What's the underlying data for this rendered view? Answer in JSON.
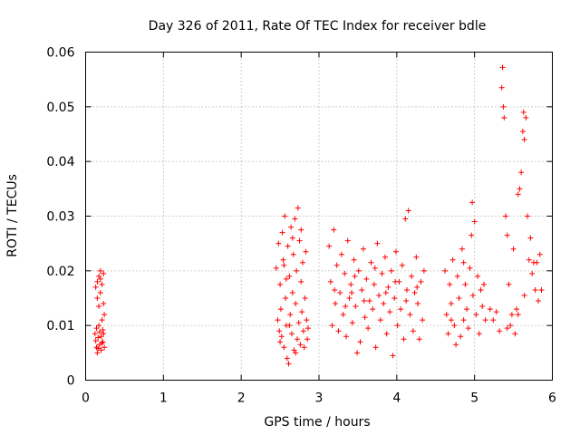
{
  "chart_data": {
    "type": "scatter",
    "title": "Day 326 of 2011, Rate Of TEC Index for receiver bdle",
    "xlabel": "GPS time / hours",
    "ylabel": "ROTI / TECUs",
    "xlim": [
      0,
      6
    ],
    "ylim": [
      0,
      0.06
    ],
    "x_ticks": [
      0,
      1,
      2,
      3,
      4,
      5,
      6
    ],
    "x_tick_labels": [
      "0",
      "1",
      "2",
      "3",
      "4",
      "5",
      "6"
    ],
    "y_ticks": [
      0,
      0.01,
      0.02,
      0.03,
      0.04,
      0.05,
      0.06
    ],
    "y_tick_labels": [
      "0",
      "0.01",
      "0.02",
      "0.03",
      "0.04",
      "0.05",
      "0.06"
    ],
    "grid": true,
    "marker": "+",
    "color": "#ff0000",
    "series": [
      {
        "name": "ROTI",
        "points": [
          [
            0.12,
            0.0085
          ],
          [
            0.13,
            0.0072
          ],
          [
            0.14,
            0.006
          ],
          [
            0.14,
            0.0095
          ],
          [
            0.15,
            0.015
          ],
          [
            0.15,
            0.018
          ],
          [
            0.16,
            0.0078
          ],
          [
            0.16,
            0.0058
          ],
          [
            0.17,
            0.019
          ],
          [
            0.17,
            0.0135
          ],
          [
            0.18,
            0.0088
          ],
          [
            0.18,
            0.0065
          ],
          [
            0.19,
            0.02
          ],
          [
            0.19,
            0.016
          ],
          [
            0.2,
            0.008
          ],
          [
            0.2,
            0.0055
          ],
          [
            0.21,
            0.0175
          ],
          [
            0.21,
            0.011
          ],
          [
            0.22,
            0.0092
          ],
          [
            0.22,
            0.007
          ],
          [
            0.23,
            0.0195
          ],
          [
            0.23,
            0.014
          ],
          [
            0.24,
            0.006
          ],
          [
            0.24,
            0.012
          ],
          [
            0.13,
            0.017
          ],
          [
            0.15,
            0.005
          ],
          [
            0.17,
            0.01
          ],
          [
            0.19,
            0.0185
          ],
          [
            0.21,
            0.0068
          ],
          [
            0.23,
            0.0085
          ],
          [
            2.45,
            0.0205
          ],
          [
            2.47,
            0.011
          ],
          [
            2.48,
            0.025
          ],
          [
            2.49,
            0.009
          ],
          [
            2.5,
            0.0175
          ],
          [
            2.51,
            0.013
          ],
          [
            2.52,
            0.008
          ],
          [
            2.53,
            0.027
          ],
          [
            2.54,
            0.022
          ],
          [
            2.55,
            0.006
          ],
          [
            2.56,
            0.03
          ],
          [
            2.57,
            0.015
          ],
          [
            2.58,
            0.01
          ],
          [
            2.59,
            0.004
          ],
          [
            2.6,
            0.0245
          ],
          [
            2.61,
            0.003
          ],
          [
            2.62,
            0.019
          ],
          [
            2.63,
            0.012
          ],
          [
            2.64,
            0.028
          ],
          [
            2.65,
            0.0085
          ],
          [
            2.66,
            0.016
          ],
          [
            2.67,
            0.023
          ],
          [
            2.68,
            0.0055
          ],
          [
            2.69,
            0.0295
          ],
          [
            2.7,
            0.014
          ],
          [
            2.71,
            0.02
          ],
          [
            2.72,
            0.0075
          ],
          [
            2.73,
            0.0315
          ],
          [
            2.74,
            0.0105
          ],
          [
            2.75,
            0.0255
          ],
          [
            2.76,
            0.0065
          ],
          [
            2.77,
            0.018
          ],
          [
            2.78,
            0.0125
          ],
          [
            2.79,
            0.0215
          ],
          [
            2.8,
            0.009
          ],
          [
            2.81,
            0.006
          ],
          [
            2.82,
            0.015
          ],
          [
            2.83,
            0.0235
          ],
          [
            2.84,
            0.011
          ],
          [
            2.85,
            0.0075
          ],
          [
            2.86,
            0.0095
          ],
          [
            2.62,
            0.01
          ],
          [
            2.55,
            0.021
          ],
          [
            2.66,
            0.026
          ],
          [
            2.7,
            0.005
          ],
          [
            2.77,
            0.0275
          ],
          [
            2.5,
            0.007
          ],
          [
            2.58,
            0.0185
          ],
          [
            3.13,
            0.0245
          ],
          [
            3.15,
            0.018
          ],
          [
            3.17,
            0.01
          ],
          [
            3.19,
            0.0275
          ],
          [
            3.21,
            0.014
          ],
          [
            3.23,
            0.021
          ],
          [
            3.25,
            0.009
          ],
          [
            3.27,
            0.016
          ],
          [
            3.29,
            0.023
          ],
          [
            3.31,
            0.012
          ],
          [
            3.33,
            0.0195
          ],
          [
            3.35,
            0.008
          ],
          [
            3.37,
            0.0255
          ],
          [
            3.39,
            0.015
          ],
          [
            3.41,
            0.0175
          ],
          [
            3.43,
            0.0105
          ],
          [
            3.45,
            0.022
          ],
          [
            3.47,
            0.0135
          ],
          [
            3.49,
            0.005
          ],
          [
            3.51,
            0.02
          ],
          [
            3.53,
            0.007
          ],
          [
            3.55,
            0.0165
          ],
          [
            3.57,
            0.024
          ],
          [
            3.59,
            0.0115
          ],
          [
            3.61,
            0.0185
          ],
          [
            3.63,
            0.0095
          ],
          [
            3.65,
            0.0145
          ],
          [
            3.67,
            0.0215
          ],
          [
            3.69,
            0.013
          ],
          [
            3.71,
            0.0175
          ],
          [
            3.73,
            0.006
          ],
          [
            3.75,
            0.025
          ],
          [
            3.77,
            0.0155
          ],
          [
            3.79,
            0.011
          ],
          [
            3.81,
            0.0195
          ],
          [
            3.83,
            0.014
          ],
          [
            3.85,
            0.0225
          ],
          [
            3.87,
            0.0085
          ],
          [
            3.89,
            0.017
          ],
          [
            3.91,
            0.0125
          ],
          [
            3.93,
            0.02
          ],
          [
            3.95,
            0.0045
          ],
          [
            3.97,
            0.015
          ],
          [
            3.99,
            0.0235
          ],
          [
            4.01,
            0.01
          ],
          [
            4.03,
            0.018
          ],
          [
            4.05,
            0.013
          ],
          [
            4.07,
            0.021
          ],
          [
            4.09,
            0.0075
          ],
          [
            4.11,
            0.0295
          ],
          [
            4.13,
            0.0165
          ],
          [
            4.15,
            0.031
          ],
          [
            4.17,
            0.012
          ],
          [
            4.19,
            0.019
          ],
          [
            4.21,
            0.009
          ],
          [
            4.23,
            0.016
          ],
          [
            4.25,
            0.0225
          ],
          [
            4.27,
            0.014
          ],
          [
            4.29,
            0.0075
          ],
          [
            4.31,
            0.018
          ],
          [
            4.33,
            0.011
          ],
          [
            4.35,
            0.02
          ],
          [
            3.2,
            0.0165
          ],
          [
            3.34,
            0.0135
          ],
          [
            3.46,
            0.019
          ],
          [
            3.58,
            0.0145
          ],
          [
            3.72,
            0.0205
          ],
          [
            3.86,
            0.016
          ],
          [
            3.98,
            0.018
          ],
          [
            4.12,
            0.0145
          ],
          [
            4.26,
            0.017
          ],
          [
            3.42,
            0.016
          ],
          [
            4.62,
            0.02
          ],
          [
            4.64,
            0.012
          ],
          [
            4.66,
            0.0085
          ],
          [
            4.68,
            0.0175
          ],
          [
            4.7,
            0.014
          ],
          [
            4.72,
            0.022
          ],
          [
            4.74,
            0.01
          ],
          [
            4.76,
            0.0065
          ],
          [
            4.78,
            0.019
          ],
          [
            4.8,
            0.015
          ],
          [
            4.82,
            0.008
          ],
          [
            4.84,
            0.024
          ],
          [
            4.86,
            0.011
          ],
          [
            4.88,
            0.0175
          ],
          [
            4.9,
            0.013
          ],
          [
            4.92,
            0.0095
          ],
          [
            4.94,
            0.0205
          ],
          [
            4.96,
            0.0265
          ],
          [
            4.97,
            0.0325
          ],
          [
            4.98,
            0.0155
          ],
          [
            5.0,
            0.029
          ],
          [
            5.02,
            0.012
          ],
          [
            5.04,
            0.019
          ],
          [
            5.06,
            0.0085
          ],
          [
            5.08,
            0.0165
          ],
          [
            5.1,
            0.0135
          ],
          [
            5.12,
            0.0175
          ],
          [
            5.14,
            0.011
          ],
          [
            4.7,
            0.011
          ],
          [
            4.86,
            0.0215
          ],
          [
            5.2,
            0.013
          ],
          [
            5.24,
            0.011
          ],
          [
            5.28,
            0.0125
          ],
          [
            5.32,
            0.009
          ],
          [
            5.35,
            0.0535
          ],
          [
            5.36,
            0.0572
          ],
          [
            5.37,
            0.05
          ],
          [
            5.38,
            0.048
          ],
          [
            5.4,
            0.03
          ],
          [
            5.42,
            0.0265
          ],
          [
            5.44,
            0.0175
          ],
          [
            5.46,
            0.01
          ],
          [
            5.48,
            0.012
          ],
          [
            5.5,
            0.024
          ],
          [
            5.52,
            0.0085
          ],
          [
            5.54,
            0.013
          ],
          [
            5.56,
            0.034
          ],
          [
            5.58,
            0.035
          ],
          [
            5.6,
            0.038
          ],
          [
            5.62,
            0.0455
          ],
          [
            5.63,
            0.049
          ],
          [
            5.64,
            0.044
          ],
          [
            5.66,
            0.048
          ],
          [
            5.68,
            0.03
          ],
          [
            5.7,
            0.022
          ],
          [
            5.72,
            0.026
          ],
          [
            5.74,
            0.0195
          ],
          [
            5.76,
            0.0215
          ],
          [
            5.78,
            0.0165
          ],
          [
            5.8,
            0.0215
          ],
          [
            5.82,
            0.0145
          ],
          [
            5.84,
            0.023
          ],
          [
            5.86,
            0.0165
          ],
          [
            5.64,
            0.0155
          ],
          [
            5.56,
            0.012
          ],
          [
            5.42,
            0.0095
          ]
        ]
      }
    ]
  }
}
